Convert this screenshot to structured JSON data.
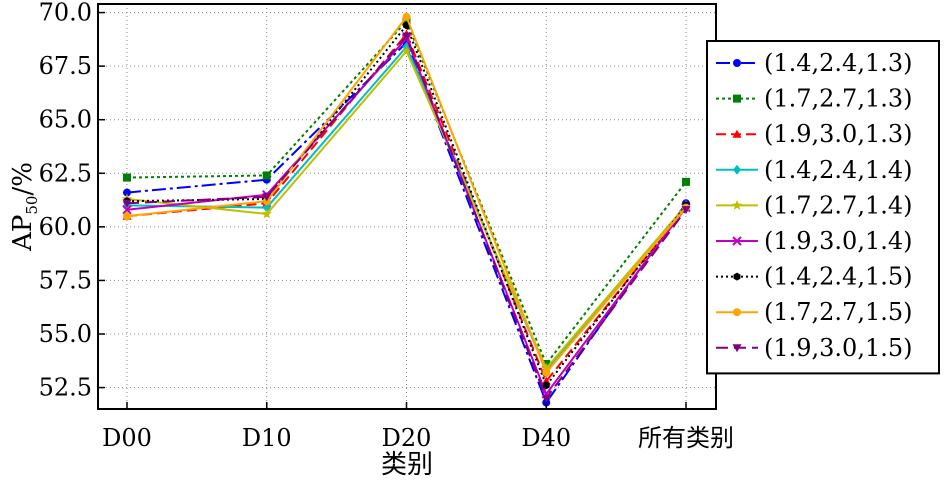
{
  "chart_data": {
    "type": "line",
    "categories": [
      "D00",
      "D10",
      "D20",
      "D40",
      "所有类别"
    ],
    "xlabel": "类别",
    "ylabel": {
      "main": "AP",
      "sub": "50",
      "suffix": "/%"
    },
    "ylim": [
      51.5,
      70.4
    ],
    "yticks": [
      "52.5",
      "55.0",
      "57.5",
      "60.0",
      "62.5",
      "65.0",
      "67.5",
      "70.0"
    ],
    "grid": true,
    "legend_position": "right",
    "series": [
      {
        "name": "(1.4,2.4,1.3)",
        "color": "#0000ff",
        "dash": "14,4,3,4",
        "marker": "circle",
        "values": [
          61.6,
          62.2,
          68.6,
          51.8,
          61.1
        ]
      },
      {
        "name": "(1.7,2.7,1.3)",
        "color": "#008000",
        "dash": "3,3",
        "marker": "square",
        "values": [
          62.3,
          62.4,
          69.6,
          53.6,
          62.1
        ]
      },
      {
        "name": "(1.9,3.0,1.3)",
        "color": "#ff0000",
        "dash": "10,5",
        "marker": "triangle-up",
        "values": [
          60.5,
          61.1,
          69.0,
          52.8,
          60.9
        ]
      },
      {
        "name": "(1.4,2.4,1.4)",
        "color": "#00bfbf",
        "dash": "",
        "marker": "diamond",
        "values": [
          61.0,
          60.9,
          68.4,
          53.3,
          61.0
        ]
      },
      {
        "name": "(1.7,2.7,1.4)",
        "color": "#bfbf00",
        "dash": "",
        "marker": "star",
        "values": [
          61.3,
          60.6,
          68.2,
          53.4,
          61.0
        ]
      },
      {
        "name": "(1.9,3.0,1.4)",
        "color": "#bf00bf",
        "dash": "",
        "marker": "x",
        "values": [
          60.8,
          61.5,
          68.8,
          52.2,
          60.9
        ]
      },
      {
        "name": "(1.4,2.4,1.5)",
        "color": "#000000",
        "dash": "2,3",
        "marker": "hexagon",
        "values": [
          61.2,
          61.3,
          69.4,
          52.6,
          61.0
        ]
      },
      {
        "name": "(1.7,2.7,1.5)",
        "color": "#ffa500",
        "dash": "",
        "marker": "circle",
        "values": [
          60.5,
          61.2,
          69.8,
          53.2,
          60.9
        ]
      },
      {
        "name": "(1.9,3.0,1.5)",
        "color": "#800080",
        "dash": "12,6",
        "marker": "triangle-down",
        "values": [
          61.1,
          61.4,
          68.9,
          52.0,
          60.8
        ]
      }
    ]
  }
}
